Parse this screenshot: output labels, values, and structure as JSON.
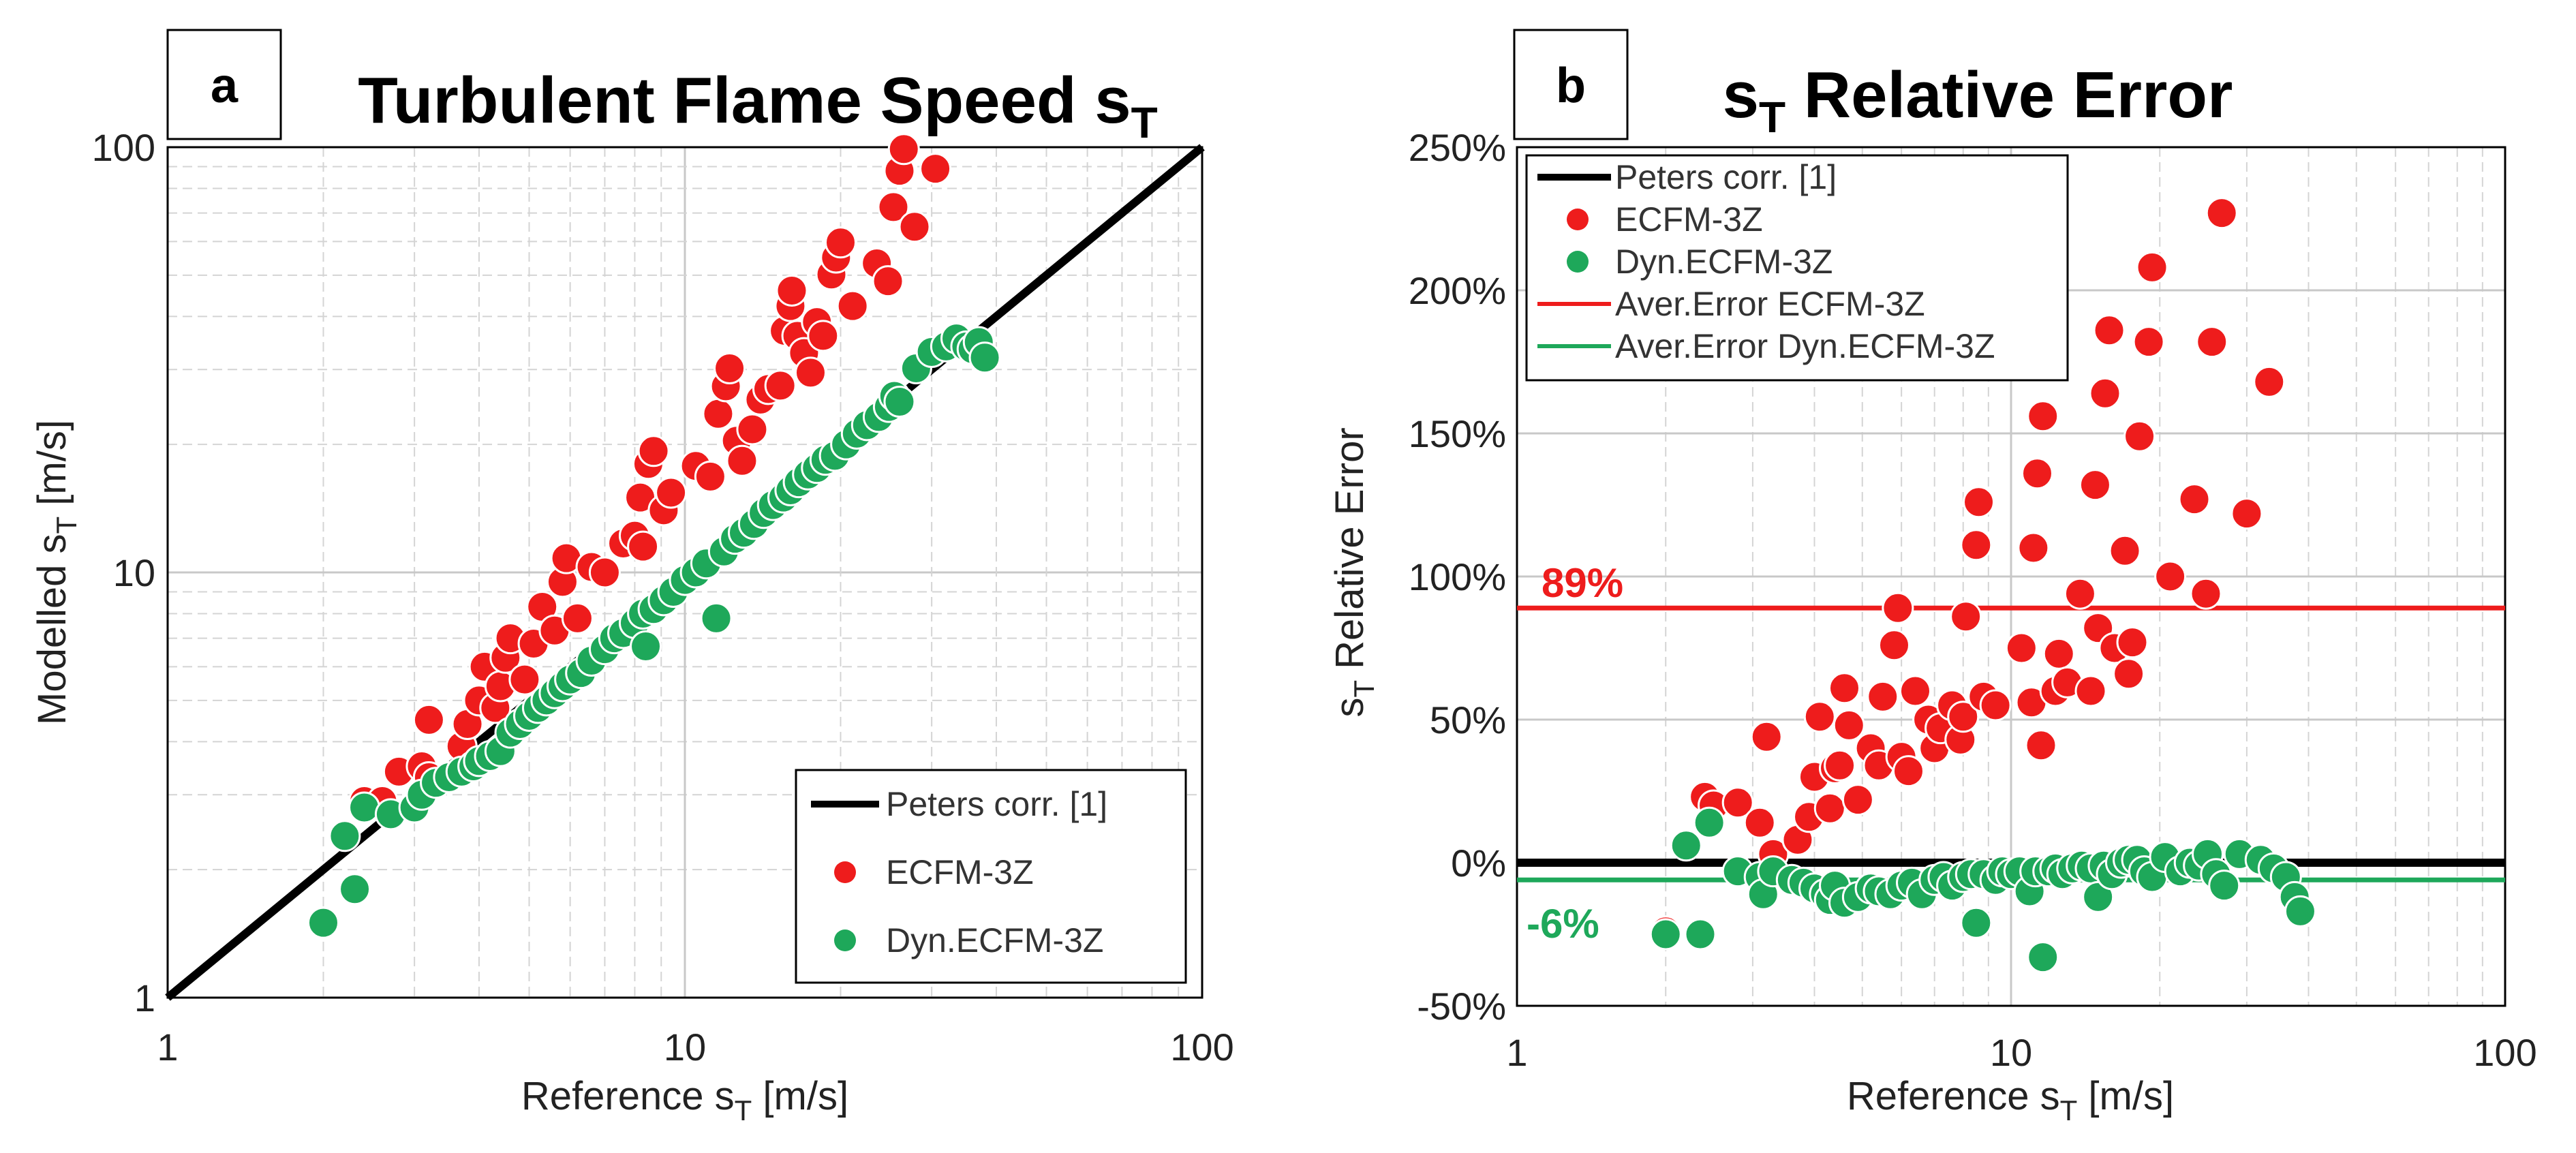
{
  "chart_data": [
    {
      "type": "scatter",
      "panel_letter": "a",
      "title": "Turbulent Flame Speed s",
      "title_subscript": "T",
      "xlabel": "Reference s",
      "xlabel_subscript": "T",
      "xlabel_suffix": " [m/s]",
      "ylabel": "Modelled s",
      "ylabel_subscript": "T",
      "ylabel_suffix": " [m/s]",
      "xscale": "log",
      "yscale": "log",
      "xlim": [
        1,
        100
      ],
      "ylim": [
        1,
        100
      ],
      "x_ticks": [
        "1",
        "10",
        "100"
      ],
      "y_ticks": [
        "1",
        "10",
        "100"
      ],
      "grid": true,
      "legend_position": "bottom-right",
      "legend": [
        "Peters corr. [1]",
        "ECFM-3Z",
        "Dyn.ECFM-3Z"
      ],
      "reference_line": {
        "name": "Peters corr. [1]",
        "color": "#000000",
        "points": [
          [
            1,
            1
          ],
          [
            100,
            100
          ]
        ]
      },
      "series": [
        {
          "name": "ECFM-3Z",
          "color": "#ee1c1c",
          "points": [
            [
              2.0,
              1.5
            ],
            [
              2.4,
              2.9
            ],
            [
              2.6,
              2.9
            ],
            [
              2.8,
              3.4
            ],
            [
              3.1,
              3.5
            ],
            [
              3.2,
              4.5
            ],
            [
              3.2,
              3.3
            ],
            [
              3.7,
              3.9
            ],
            [
              3.8,
              4.4
            ],
            [
              4.0,
              5.0
            ],
            [
              4.1,
              6.0
            ],
            [
              4.3,
              4.8
            ],
            [
              4.4,
              5.4
            ],
            [
              4.5,
              6.3
            ],
            [
              4.6,
              7.0
            ],
            [
              4.9,
              5.6
            ],
            [
              5.1,
              6.8
            ],
            [
              5.3,
              8.3
            ],
            [
              5.6,
              7.3
            ],
            [
              5.8,
              9.5
            ],
            [
              5.9,
              10.8
            ],
            [
              6.2,
              7.8
            ],
            [
              6.6,
              10.3
            ],
            [
              7.0,
              10.0
            ],
            [
              7.6,
              11.7
            ],
            [
              8.0,
              12.2
            ],
            [
              8.2,
              15.0
            ],
            [
              8.3,
              11.5
            ],
            [
              8.5,
              18.0
            ],
            [
              8.7,
              19.3
            ],
            [
              9.1,
              14.0
            ],
            [
              9.4,
              15.4
            ],
            [
              10.5,
              17.8
            ],
            [
              11.2,
              16.8
            ],
            [
              11.6,
              23.6
            ],
            [
              12.0,
              27.4
            ],
            [
              12.2,
              30.2
            ],
            [
              12.6,
              20.4
            ],
            [
              12.9,
              18.3
            ],
            [
              13.5,
              21.7
            ],
            [
              14.0,
              25.5
            ],
            [
              14.5,
              27.0
            ],
            [
              15.3,
              27.5
            ],
            [
              15.6,
              37.0
            ],
            [
              16.0,
              42.3
            ],
            [
              16.1,
              46.0
            ],
            [
              16.5,
              36.0
            ],
            [
              17.0,
              32.8
            ],
            [
              17.5,
              29.5
            ],
            [
              18.0,
              38.8
            ],
            [
              18.5,
              36.0
            ],
            [
              19.2,
              50.2
            ],
            [
              19.6,
              55.0
            ],
            [
              20.0,
              59.7
            ],
            [
              21.1,
              42.3
            ],
            [
              23.5,
              53.3
            ],
            [
              24.7,
              48.4
            ],
            [
              25.3,
              72.3
            ],
            [
              26.0,
              88.0
            ],
            [
              26.5,
              99.0
            ],
            [
              27.8,
              65.0
            ],
            [
              30.5,
              89.0
            ]
          ]
        },
        {
          "name": "Dyn.ECFM-3Z",
          "color": "#1ea85a",
          "points": [
            [
              2.0,
              1.5
            ],
            [
              2.2,
              2.4
            ],
            [
              2.3,
              1.8
            ],
            [
              2.4,
              2.8
            ],
            [
              2.7,
              2.7
            ],
            [
              3.0,
              2.8
            ],
            [
              3.1,
              3.0
            ],
            [
              3.3,
              3.2
            ],
            [
              3.5,
              3.3
            ],
            [
              3.7,
              3.4
            ],
            [
              3.9,
              3.5
            ],
            [
              4.0,
              3.6
            ],
            [
              4.2,
              3.7
            ],
            [
              4.4,
              3.8
            ],
            [
              4.6,
              4.2
            ],
            [
              4.8,
              4.4
            ],
            [
              5.0,
              4.6
            ],
            [
              5.2,
              4.8
            ],
            [
              5.4,
              5.0
            ],
            [
              5.6,
              5.2
            ],
            [
              5.8,
              5.4
            ],
            [
              6.0,
              5.6
            ],
            [
              6.3,
              5.8
            ],
            [
              6.6,
              6.2
            ],
            [
              7.0,
              6.6
            ],
            [
              7.3,
              7.0
            ],
            [
              7.6,
              7.2
            ],
            [
              8.0,
              7.6
            ],
            [
              8.3,
              8.0
            ],
            [
              8.4,
              6.7
            ],
            [
              8.7,
              8.2
            ],
            [
              9.1,
              8.6
            ],
            [
              9.5,
              9.0
            ],
            [
              10.0,
              9.6
            ],
            [
              10.5,
              10.0
            ],
            [
              11.0,
              10.5
            ],
            [
              11.5,
              7.8
            ],
            [
              11.9,
              11.2
            ],
            [
              12.5,
              12.0
            ],
            [
              13.0,
              12.4
            ],
            [
              13.6,
              13.0
            ],
            [
              14.2,
              13.8
            ],
            [
              14.8,
              14.4
            ],
            [
              15.5,
              15.0
            ],
            [
              16.0,
              15.6
            ],
            [
              16.6,
              16.3
            ],
            [
              17.3,
              17.0
            ],
            [
              18.0,
              17.6
            ],
            [
              18.7,
              18.4
            ],
            [
              19.5,
              18.8
            ],
            [
              20.5,
              20.0
            ],
            [
              21.5,
              21.2
            ],
            [
              22.5,
              22.2
            ],
            [
              23.7,
              23.2
            ],
            [
              24.8,
              24.5
            ],
            [
              25.4,
              26.0
            ],
            [
              26.0,
              25.2
            ],
            [
              28.0,
              30.2
            ],
            [
              30.0,
              33.0
            ],
            [
              32.0,
              34.0
            ],
            [
              33.5,
              35.5
            ],
            [
              35.0,
              34.0
            ],
            [
              36.0,
              33.5
            ],
            [
              37.0,
              34.8
            ],
            [
              38.0,
              32.0
            ]
          ]
        }
      ]
    },
    {
      "type": "scatter",
      "panel_letter": "b",
      "title": "s",
      "title_subscript": "T",
      "title_suffix": " Relative Error",
      "xlabel": "Reference s",
      "xlabel_subscript": "T",
      "xlabel_suffix": " [m/s]",
      "ylabel": "s",
      "ylabel_subscript": "T",
      "ylabel_suffix": " Relative Error",
      "xscale": "log",
      "xlim": [
        1,
        100
      ],
      "ylim": [
        -50,
        250
      ],
      "x_ticks": [
        "1",
        "10",
        "100"
      ],
      "y_ticks": [
        "-50%",
        "0%",
        "50%",
        "100%",
        "150%",
        "200%",
        "250%"
      ],
      "y_tick_values": [
        -50,
        0,
        50,
        100,
        150,
        200,
        250
      ],
      "grid": true,
      "legend_position": "top-left",
      "legend": [
        "Peters corr. [1]",
        "ECFM-3Z",
        "Dyn.ECFM-3Z",
        "Aver.Error ECFM-3Z",
        "Aver.Error Dyn.ECFM-3Z"
      ],
      "reference_line": {
        "name": "Peters corr. [1]",
        "color": "#000000",
        "y": 0
      },
      "average_lines": [
        {
          "name": "Aver.Error ECFM-3Z",
          "color": "#ee1c1c",
          "y": 89,
          "label": "89%"
        },
        {
          "name": "Aver.Error Dyn.ECFM-3Z",
          "color": "#1ea85a",
          "y": -6,
          "label": "-6%"
        }
      ],
      "series": [
        {
          "name": "ECFM-3Z",
          "color": "#ee1c1c",
          "points": [
            [
              2.0,
              -24
            ],
            [
              2.4,
              23
            ],
            [
              2.5,
              20
            ],
            [
              2.8,
              21
            ],
            [
              3.1,
              14
            ],
            [
              3.2,
              44
            ],
            [
              3.3,
              3
            ],
            [
              3.7,
              8
            ],
            [
              3.9,
              16
            ],
            [
              4.0,
              30
            ],
            [
              4.1,
              51
            ],
            [
              4.3,
              19
            ],
            [
              4.4,
              33
            ],
            [
              4.5,
              34
            ],
            [
              4.6,
              61
            ],
            [
              4.7,
              48
            ],
            [
              4.9,
              22
            ],
            [
              5.2,
              40
            ],
            [
              5.4,
              34
            ],
            [
              5.5,
              58
            ],
            [
              5.8,
              76
            ],
            [
              5.9,
              89
            ],
            [
              6.0,
              37
            ],
            [
              6.2,
              32
            ],
            [
              6.4,
              60
            ],
            [
              6.8,
              50
            ],
            [
              7.0,
              40
            ],
            [
              7.2,
              47
            ],
            [
              7.6,
              55
            ],
            [
              7.9,
              43
            ],
            [
              8.0,
              51
            ],
            [
              8.1,
              86
            ],
            [
              8.5,
              111
            ],
            [
              8.6,
              126
            ],
            [
              8.8,
              58
            ],
            [
              9.3,
              55
            ],
            [
              10.5,
              75
            ],
            [
              11.0,
              56
            ],
            [
              11.1,
              110
            ],
            [
              11.3,
              136
            ],
            [
              11.5,
              41
            ],
            [
              11.6,
              156
            ],
            [
              12.3,
              60
            ],
            [
              12.5,
              73
            ],
            [
              13.0,
              63
            ],
            [
              13.8,
              94
            ],
            [
              14.5,
              60
            ],
            [
              14.8,
              132
            ],
            [
              15.0,
              82
            ],
            [
              15.5,
              164
            ],
            [
              15.8,
              186
            ],
            [
              16.2,
              75
            ],
            [
              17.0,
              109
            ],
            [
              17.3,
              66
            ],
            [
              17.6,
              77
            ],
            [
              18.2,
              149
            ],
            [
              19.0,
              182
            ],
            [
              19.3,
              208
            ],
            [
              21.0,
              100
            ],
            [
              23.5,
              127
            ],
            [
              24.8,
              94
            ],
            [
              25.5,
              182
            ],
            [
              26.7,
              227
            ],
            [
              30.0,
              122
            ],
            [
              33.3,
              168
            ]
          ]
        },
        {
          "name": "Dyn.ECFM-3Z",
          "color": "#1ea85a",
          "points": [
            [
              2.0,
              -25
            ],
            [
              2.2,
              6
            ],
            [
              2.35,
              -25
            ],
            [
              2.45,
              14
            ],
            [
              2.8,
              -3
            ],
            [
              3.1,
              -5
            ],
            [
              3.15,
              -11
            ],
            [
              3.3,
              -3
            ],
            [
              3.6,
              -6
            ],
            [
              3.8,
              -7
            ],
            [
              4.0,
              -9
            ],
            [
              4.2,
              -11
            ],
            [
              4.3,
              -13
            ],
            [
              4.4,
              -8
            ],
            [
              4.6,
              -14
            ],
            [
              4.9,
              -12
            ],
            [
              5.2,
              -9
            ],
            [
              5.4,
              -10
            ],
            [
              5.7,
              -11
            ],
            [
              6.0,
              -8
            ],
            [
              6.3,
              -7
            ],
            [
              6.6,
              -11
            ],
            [
              7.0,
              -6
            ],
            [
              7.3,
              -5
            ],
            [
              7.6,
              -8
            ],
            [
              8.0,
              -5
            ],
            [
              8.3,
              -4
            ],
            [
              8.5,
              -21
            ],
            [
              8.8,
              -4
            ],
            [
              9.3,
              -6
            ],
            [
              9.6,
              -3
            ],
            [
              10.0,
              -4
            ],
            [
              10.4,
              -3
            ],
            [
              10.9,
              -10
            ],
            [
              11.2,
              -3
            ],
            [
              11.6,
              -33
            ],
            [
              11.9,
              -3
            ],
            [
              12.3,
              -2
            ],
            [
              12.7,
              -4
            ],
            [
              13.3,
              -2
            ],
            [
              13.9,
              -1
            ],
            [
              14.5,
              -2
            ],
            [
              15.0,
              -12
            ],
            [
              15.4,
              -1
            ],
            [
              16.0,
              -4
            ],
            [
              16.7,
              0
            ],
            [
              17.3,
              1
            ],
            [
              18.0,
              1
            ],
            [
              18.6,
              -3
            ],
            [
              19.3,
              -5
            ],
            [
              20.5,
              2
            ],
            [
              22.0,
              -3
            ],
            [
              23.0,
              0
            ],
            [
              24.0,
              -1
            ],
            [
              25.0,
              3
            ],
            [
              26.0,
              -4
            ],
            [
              27.0,
              -8
            ],
            [
              29.0,
              3
            ],
            [
              32.0,
              1
            ],
            [
              34.0,
              -2
            ],
            [
              36.0,
              -5
            ],
            [
              37.5,
              -12
            ],
            [
              38.5,
              -17
            ]
          ]
        }
      ]
    }
  ]
}
